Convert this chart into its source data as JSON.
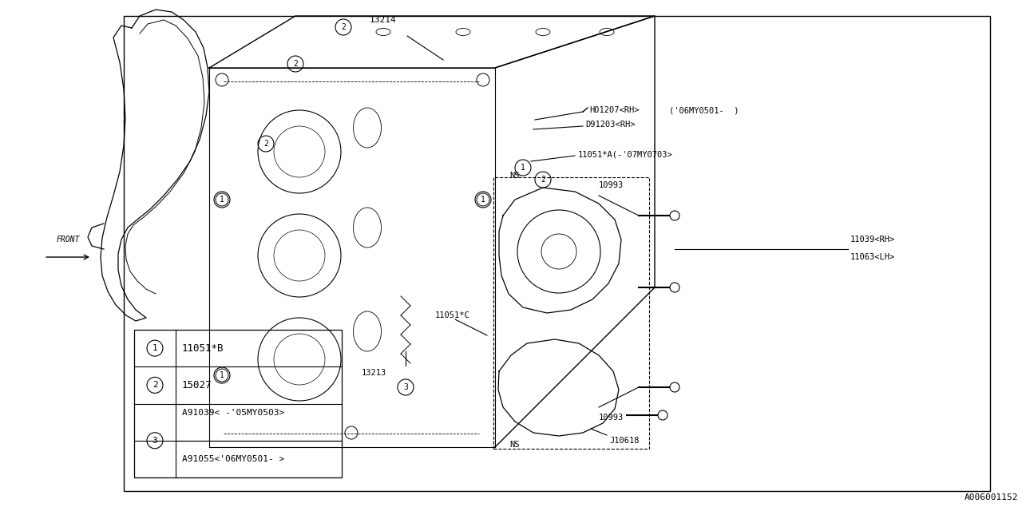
{
  "bg_color": "#ffffff",
  "line_color": "#000000",
  "part_number": "A006001152",
  "label_13214": "13214",
  "label_H01207": "H01207<RH>",
  "label_D91203": "D91203<RH>",
  "label_06MY": "('06MY0501-  )",
  "label_11051A": "11051*A(-'07MY0703>",
  "label_NS": "NS",
  "label_10993": "10993",
  "label_J10618": "J10618",
  "label_13213": "13213",
  "label_11051C": "11051*C",
  "label_11039": "11039<RH>",
  "label_11063": "11063<LH>",
  "label_FRONT": "FRONT",
  "legend_items": [
    {
      "num": 1,
      "text": "11051*B"
    },
    {
      "num": 2,
      "text": "15027"
    },
    {
      "num": 3,
      "text1": "A91039< -'05MY0503>",
      "text2": "A91055<'06MY0501- >"
    }
  ]
}
